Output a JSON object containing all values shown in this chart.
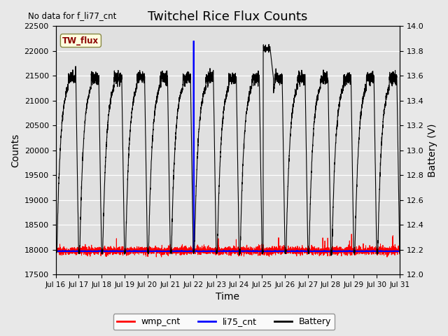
{
  "title": "Twitchel Rice Flux Counts",
  "no_data_text": "No data for f_li77_cnt",
  "tw_flux_label": "TW_flux",
  "xlabel": "Time",
  "ylabel_left": "Counts",
  "ylabel_right": "Battery (V)",
  "ylim_left": [
    17500,
    22500
  ],
  "ylim_right": [
    12.0,
    14.0
  ],
  "xlim": [
    0,
    15
  ],
  "x_tick_labels": [
    "Jul 16",
    "Jul 17",
    "Jul 18",
    "Jul 19",
    "Jul 20",
    "Jul 21",
    "Jul 22",
    "Jul 23",
    "Jul 24",
    "Jul 25",
    "Jul 26",
    "Jul 27",
    "Jul 28",
    "Jul 29",
    "Jul 30",
    "Jul 31"
  ],
  "background_color": "#e8e8e8",
  "plot_bg_color": "#e0e0e0",
  "yticks_left": [
    17500,
    18000,
    18500,
    19000,
    19500,
    20000,
    20500,
    21000,
    21500,
    22000,
    22500
  ],
  "yticks_right": [
    12.0,
    12.2,
    12.4,
    12.6,
    12.8,
    13.0,
    13.2,
    13.4,
    13.6,
    13.8,
    14.0
  ],
  "legend_items": [
    "wmp_cnt",
    "li75_cnt",
    "Battery"
  ],
  "legend_colors": [
    "red",
    "blue",
    "black"
  ],
  "batt_min": 12.18,
  "batt_max": 13.58,
  "batt_peak_day": 9.0,
  "batt_peak_val": 13.82,
  "li75_spike_day": 6.0,
  "li75_spike_val": 22200,
  "wmp_base": 17980,
  "li75_base": 17970
}
